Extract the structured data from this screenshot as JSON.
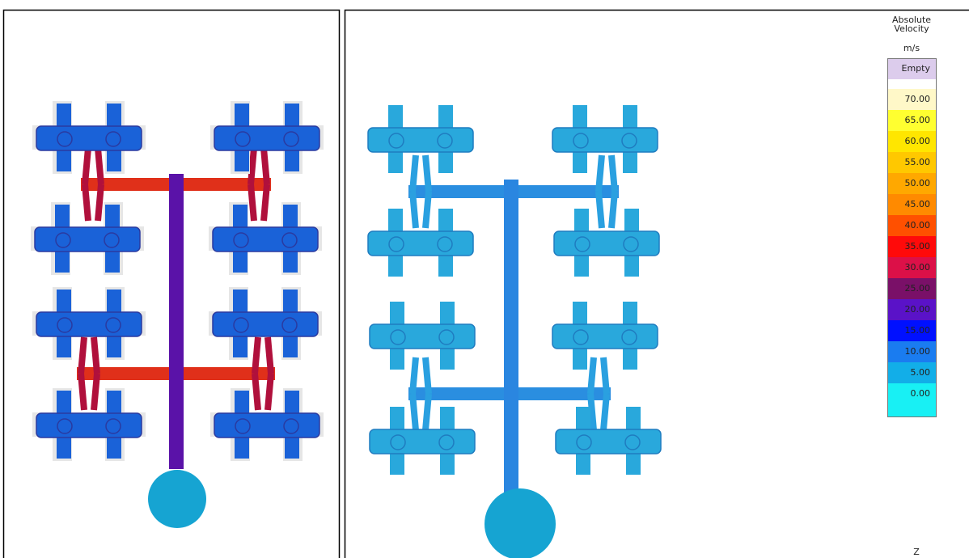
{
  "legend": {
    "title": [
      "Absolute",
      "Velocity"
    ],
    "unit": "m/s",
    "entries": [
      {
        "label": "Empty",
        "color": "#dcccec"
      },
      {
        "label": "70.00",
        "color": "#fff8c8"
      },
      {
        "label": "65.00",
        "color": "#ffff30"
      },
      {
        "label": "60.00",
        "color": "#ffe600"
      },
      {
        "label": "55.00",
        "color": "#ffc800"
      },
      {
        "label": "50.00",
        "color": "#ffa800"
      },
      {
        "label": "45.00",
        "color": "#ff8a00"
      },
      {
        "label": "40.00",
        "color": "#ff5000"
      },
      {
        "label": "35.00",
        "color": "#ff0a0a"
      },
      {
        "label": "30.00",
        "color": "#dc1048"
      },
      {
        "label": "25.00",
        "color": "#7a1068"
      },
      {
        "label": "20.00",
        "color": "#5a12c8"
      },
      {
        "label": "15.00",
        "color": "#0010ff"
      },
      {
        "label": "10.00",
        "color": "#1a7cf0"
      },
      {
        "label": "5.00",
        "color": "#12aee8"
      },
      {
        "label": "0.00",
        "color": "#18f0f4"
      }
    ]
  },
  "axis_label": "Z"
}
